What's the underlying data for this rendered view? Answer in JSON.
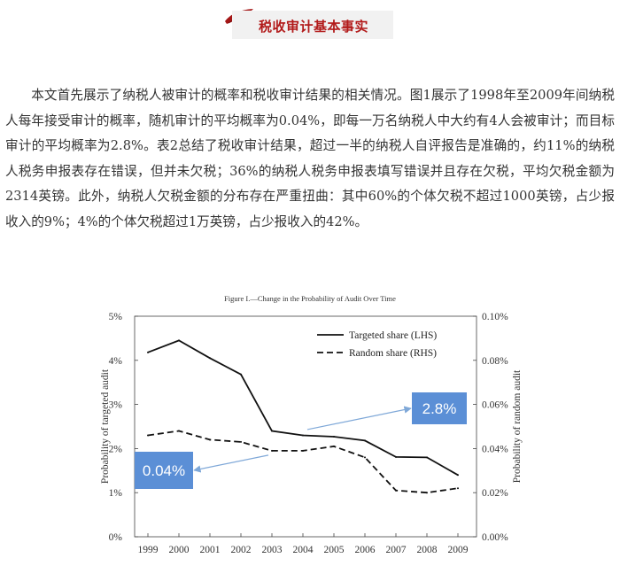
{
  "section": {
    "title": "税收审计基本事实"
  },
  "article": {
    "paragraph": "本文首先展示了纳税人被审计的概率和税收审计结果的相关情况。图1展示了1998年至2009年间纳税人每年接受审计的概率，随机审计的平均概率为0.04%，即每一万名纳税人中大约有4人会被审计；而目标审计的平均概率为2.8%。表2总结了税收审计结果，超过一半的纳税人自评报告是准确的，约11%的纳税人税务申报表存在错误，但并未欠税；36%的纳税人税务申报表填写错误并且存在欠税，平均欠税金额为2314英镑。此外，纳税人欠税金额的分布存在严重扭曲：其中60%的个体欠税不超过1000英镑，占少报收入的9%；4%的个体欠税超过1万英镑，占少报收入的42%。"
  },
  "colors": {
    "title_red": "#b21a1a",
    "callout_blue": "#5b8fd6",
    "arrow_blue": "#7fa8d8"
  },
  "chart_data": {
    "type": "line",
    "title": "Figure I.—Change in the Probability of Audit Over Time",
    "x": [
      1999,
      2000,
      2001,
      2002,
      2003,
      2004,
      2005,
      2006,
      2007,
      2008,
      2009
    ],
    "series": [
      {
        "name": "Targeted share (LHS)",
        "axis": "left",
        "style": "solid",
        "values": [
          4.18,
          4.45,
          4.05,
          3.68,
          2.4,
          2.3,
          2.27,
          2.18,
          1.81,
          1.8,
          1.4
        ]
      },
      {
        "name": "Random share (RHS)",
        "axis": "right",
        "style": "dashed",
        "values": [
          0.046,
          0.048,
          0.044,
          0.043,
          0.039,
          0.039,
          0.041,
          0.036,
          0.021,
          0.02,
          0.022
        ]
      }
    ],
    "ylabel_left": "Probability of targeted audit",
    "ylabel_right": "Probability of random audit",
    "ylim_left": [
      0,
      5
    ],
    "ylim_right": [
      0,
      0.1
    ],
    "yticks_left": [
      "0%",
      "1%",
      "2%",
      "3%",
      "4%",
      "5%"
    ],
    "yticks_right": [
      "0.00%",
      "0.02%",
      "0.04%",
      "0.06%",
      "0.08%",
      "0.10%"
    ],
    "legend_position": "top-right",
    "grid": false,
    "annotations": [
      {
        "label": "2.8%",
        "points_to": "Targeted share (LHS)"
      },
      {
        "label": "0.04%",
        "points_to": "Random share (RHS)"
      }
    ]
  }
}
